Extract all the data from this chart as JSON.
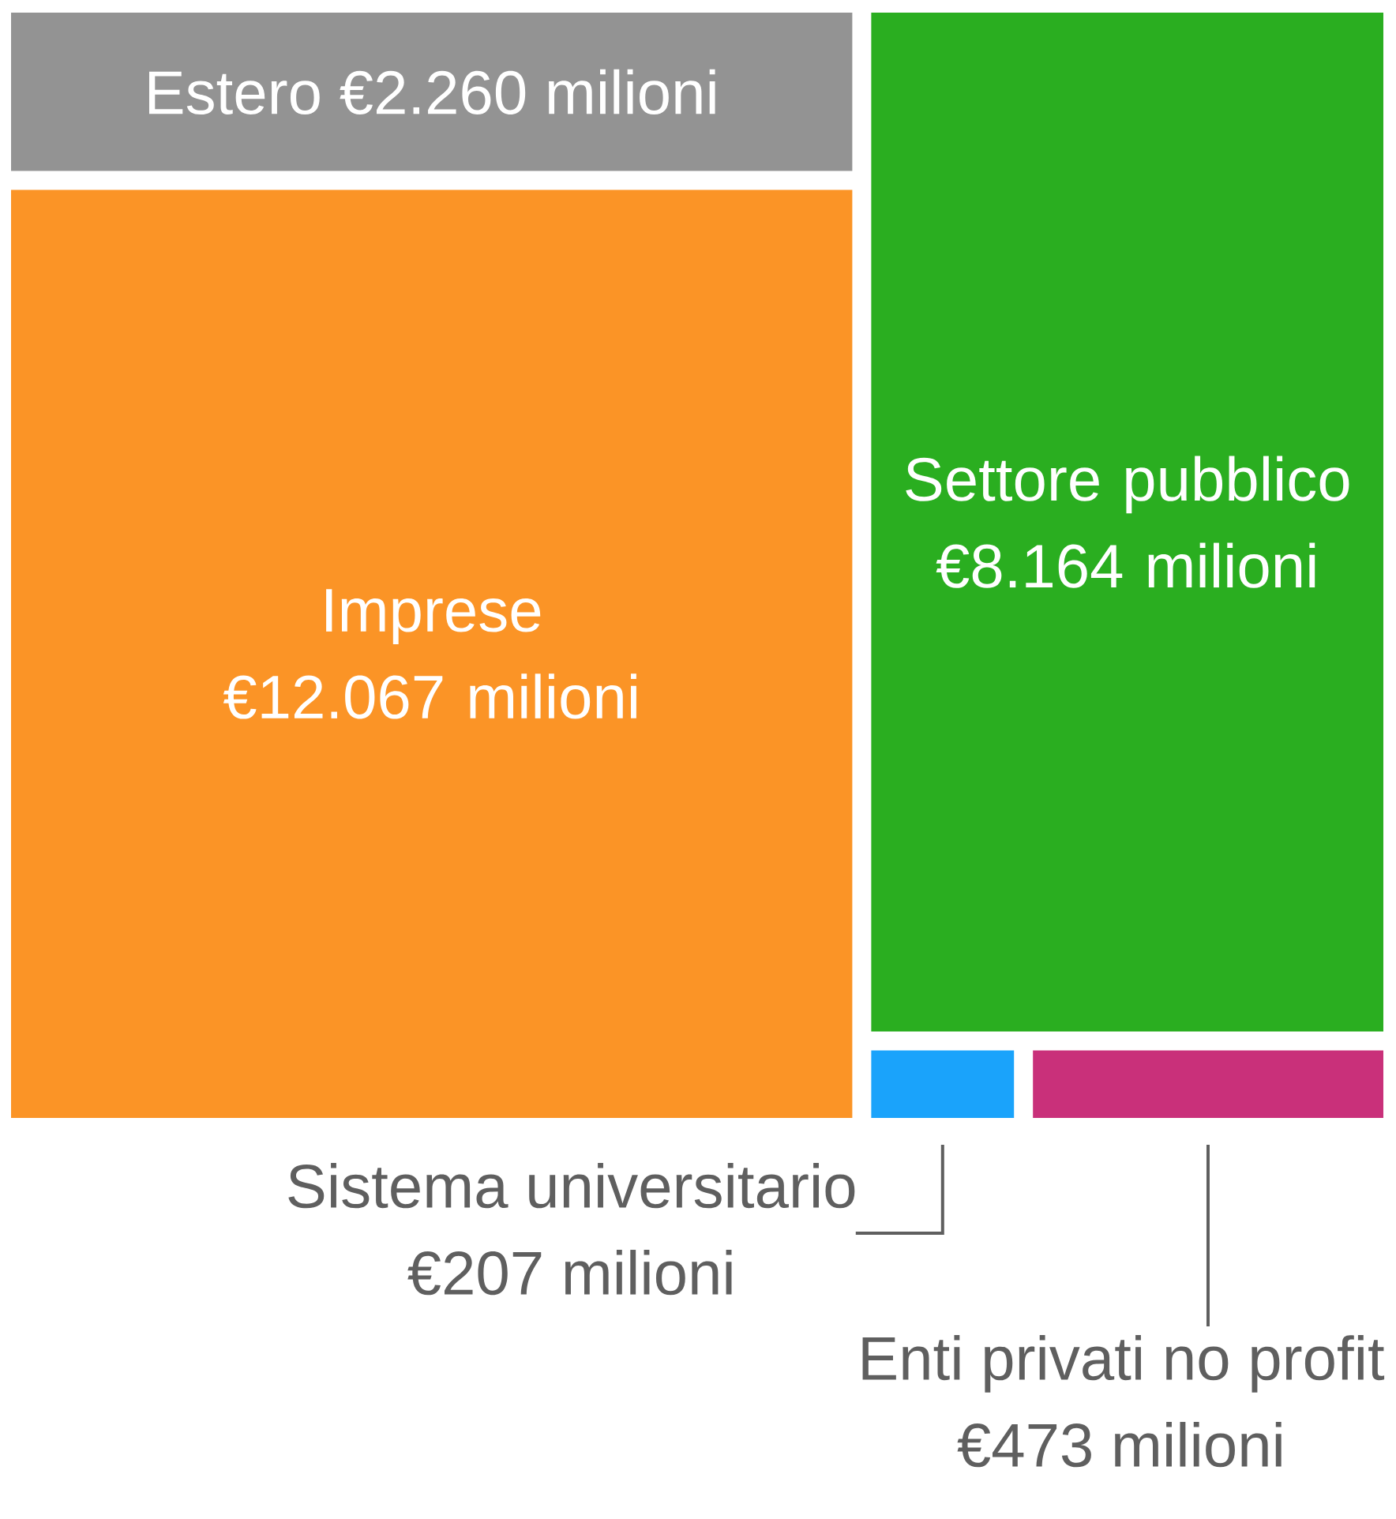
{
  "chart_data": {
    "type": "other",
    "categories": [
      "Estero",
      "Imprese",
      "Settore pubblico",
      "Sistema universitario",
      "Enti privati no profit"
    ],
    "values": [
      2260,
      12067,
      8164,
      207,
      473
    ],
    "value_labels": [
      "€2.260 milioni",
      "€12.067 milioni",
      "€8.164 milioni",
      "€207 milioni",
      "€473 milioni"
    ],
    "colors": [
      "#939393",
      "#fb9426",
      "#2aae20",
      "#1aa3fb",
      "#c9307a"
    ]
  }
}
